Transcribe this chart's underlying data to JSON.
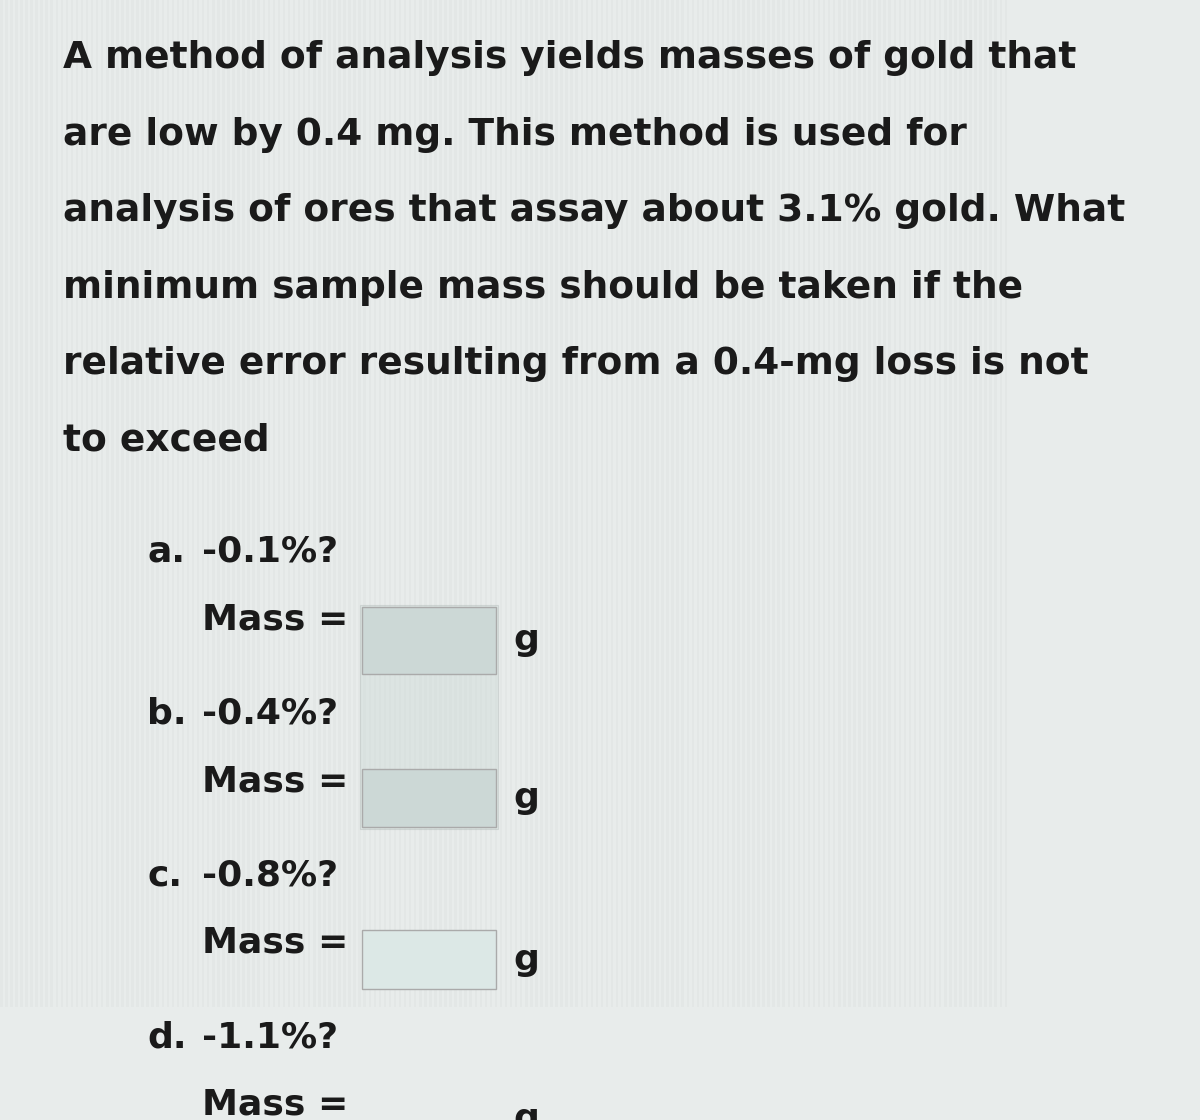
{
  "background_color": "#e8eceb",
  "text_color": "#1a1a1a",
  "paragraph_lines": [
    "A method of analysis yields masses of gold that",
    "are low by 0.4 mg. This method is used for",
    "analysis of ores that assay about 3.1% gold. What",
    "minimum sample mass should be taken if the",
    "relative error resulting from a 0.4-mg loss is not",
    "to exceed"
  ],
  "items": [
    {
      "label": "a.",
      "question": "-0.1%?",
      "mass_label": "Mass =",
      "unit": "g"
    },
    {
      "label": "b.",
      "question": "-0.4%?",
      "mass_label": "Mass =",
      "unit": "g"
    },
    {
      "label": "c.",
      "question": "-0.8%?",
      "mass_label": "Mass =",
      "unit": "g"
    },
    {
      "label": "d.",
      "question": "-1.1%?",
      "mass_label": "Mass =",
      "unit": "g"
    }
  ],
  "paragraph_font_size": 27,
  "item_font_size": 26,
  "box_fill_color_ab": "#ccd8d6",
  "box_fill_color_cd": "#dce8e6",
  "box_edge_color": "#aaaaaa",
  "stripe_color": "#d8dddc",
  "stripe_color2": "#e2e7e6"
}
